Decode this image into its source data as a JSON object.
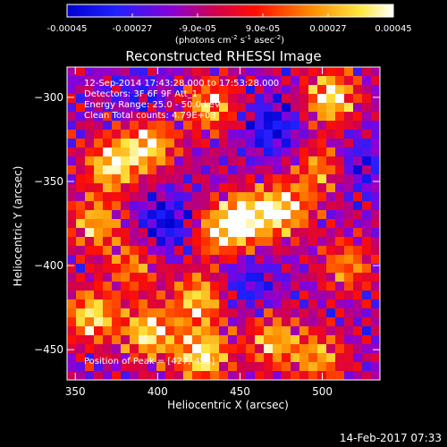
{
  "chart_data": {
    "type": "heatmap",
    "title": "Reconstructed RHESSI Image",
    "xlabel": "Heliocentric X (arcsec)",
    "ylabel": "Heliocentric Y (arcsec)",
    "xlim": [
      345,
      535
    ],
    "ylim": [
      -468,
      -282
    ],
    "x_ticks": [
      350,
      400,
      450,
      500
    ],
    "y_ticks": [
      -300,
      -350,
      -400,
      -450
    ],
    "colorbar": {
      "label_main": "(photons cm",
      "label_exp1": "-2",
      "label_s": " s",
      "label_exp2": "-1",
      "label_asec": " asec",
      "label_exp3": "-2",
      "label_close": ")",
      "range": [
        -0.00045,
        0.00045
      ],
      "ticks": [
        "-0.00045",
        "-0.00027",
        "-9.0e-05",
        "9.0e-05",
        "0.00027",
        "0.00045"
      ],
      "tick_values": [
        -0.00045,
        -0.00027,
        -9e-05,
        9e-05,
        0.00027,
        0.00045
      ]
    },
    "annotations": [
      "12-Sep-2014 17:43:28.000 to 17:53:28.000",
      "Detectors: 3F 6F 9F  Att_1",
      "Energy Range: 25.0 - 50.0 keV",
      "Clean    Total counts: 4.79E+03"
    ],
    "peak_label": "Position of Peak = [427,-453]",
    "bright_regions": [
      {
        "x": 372,
        "y": -340,
        "value": 0.0004
      },
      {
        "x": 395,
        "y": -328,
        "value": 0.00038
      },
      {
        "x": 362,
        "y": -375,
        "value": 0.0003
      },
      {
        "x": 432,
        "y": -305,
        "value": 0.0003
      },
      {
        "x": 505,
        "y": -300,
        "value": 0.00042
      },
      {
        "x": 455,
        "y": -372,
        "value": 0.00044
      },
      {
        "x": 478,
        "y": -366,
        "value": 0.00036
      },
      {
        "x": 437,
        "y": -380,
        "value": 0.00032
      },
      {
        "x": 500,
        "y": -342,
        "value": 0.00026
      },
      {
        "x": 360,
        "y": -430,
        "value": 0.00038
      },
      {
        "x": 395,
        "y": -440,
        "value": 0.0004
      },
      {
        "x": 427,
        "y": -453,
        "value": 0.00045
      },
      {
        "x": 425,
        "y": -420,
        "value": 0.00034
      },
      {
        "x": 470,
        "y": -445,
        "value": 0.0003
      },
      {
        "x": 498,
        "y": -455,
        "value": 0.00026
      },
      {
        "x": 515,
        "y": -400,
        "value": 0.00022
      },
      {
        "x": 385,
        "y": -400,
        "value": 0.0002
      }
    ],
    "dark_regions": [
      {
        "x": 405,
        "y": -375,
        "value": -0.0003
      },
      {
        "x": 470,
        "y": -318,
        "value": -0.00028
      },
      {
        "x": 520,
        "y": -340,
        "value": -0.00022
      },
      {
        "x": 455,
        "y": -410,
        "value": -0.0002
      },
      {
        "x": 390,
        "y": -300,
        "value": -0.00015
      }
    ]
  },
  "timestamp": "14-Feb-2017 07:33",
  "colors": {
    "background": "#000000",
    "text": "#ffffff",
    "colormap": [
      "#0000ff",
      "#7f00ff",
      "#ff0000",
      "#ff8000",
      "#ffff00",
      "#ffffff"
    ]
  }
}
